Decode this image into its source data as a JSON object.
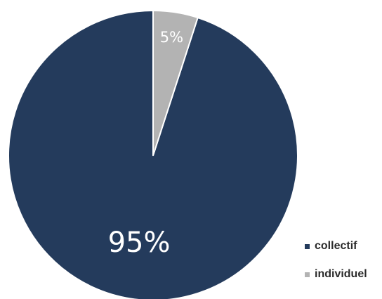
{
  "chart_data": {
    "type": "pie",
    "title": "",
    "slices": [
      {
        "label": "collectif",
        "value": 95,
        "display": "95%",
        "color": "#243b5c"
      },
      {
        "label": "individuel",
        "value": 5,
        "display": "5%",
        "color": "#b3b3b3"
      }
    ],
    "legend_position": "bottom-right",
    "start_angle": "12 o'clock",
    "direction": "counterclockwise"
  }
}
